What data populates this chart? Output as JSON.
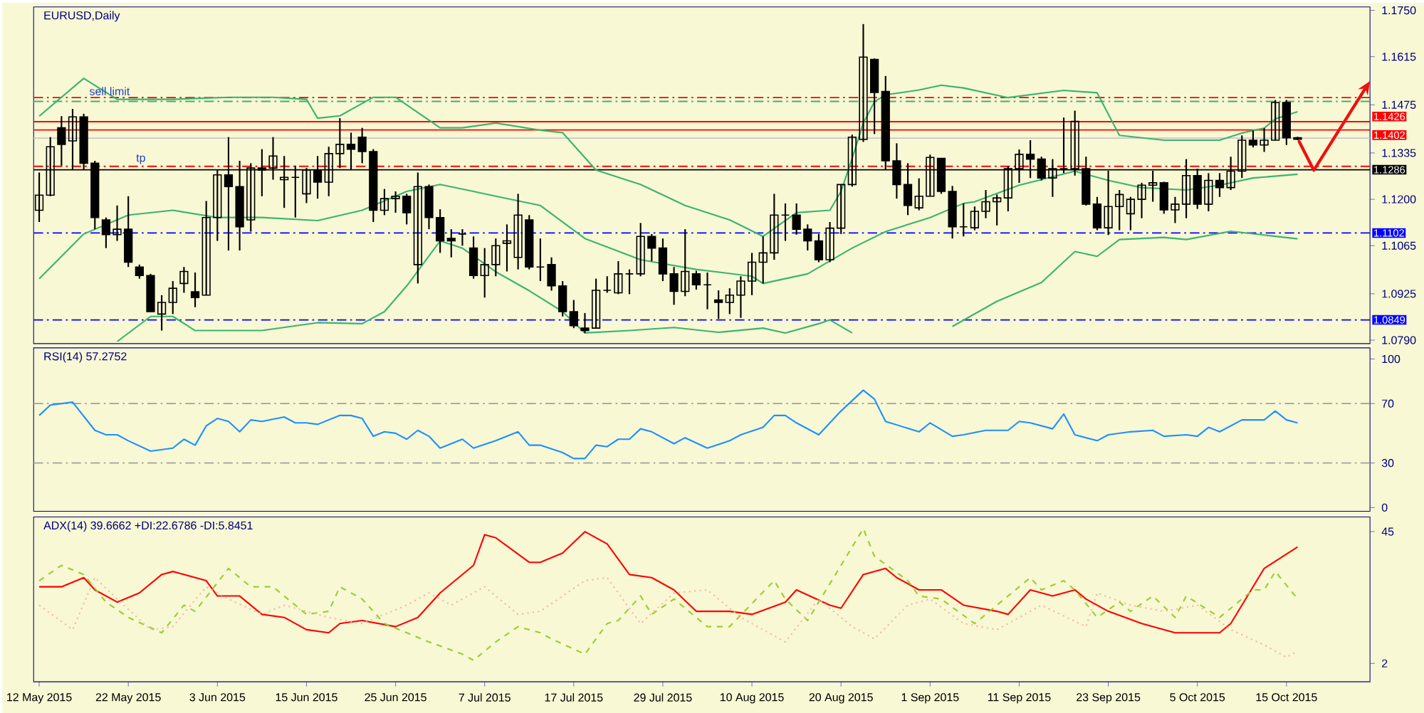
{
  "chart_data": [
    {
      "type": "candlestick",
      "title": "EURUSD,Daily",
      "categories": [
        null,
        null,
        null,
        null,
        null,
        null,
        null,
        null,
        null,
        null,
        null,
        null,
        null,
        null,
        null,
        null,
        null,
        null,
        null,
        null,
        null,
        null,
        null,
        null,
        null,
        null,
        null,
        null,
        null,
        null,
        null,
        null,
        null,
        null,
        null,
        null,
        null,
        null,
        null,
        null,
        null,
        null,
        null,
        null,
        null,
        null,
        null,
        null,
        null,
        null,
        null,
        null,
        null,
        null,
        null,
        null,
        null,
        null,
        null,
        null,
        null,
        null,
        null,
        null,
        null,
        null,
        null,
        null,
        null,
        null,
        null,
        null,
        null,
        null,
        null,
        null,
        null,
        null,
        null,
        null,
        null,
        null,
        null,
        null,
        null,
        null,
        null,
        null,
        null,
        null,
        null,
        null,
        null,
        null,
        null,
        null,
        null,
        null,
        null,
        null,
        null,
        null,
        null,
        null,
        null,
        null,
        null,
        null,
        null,
        null,
        null,
        null,
        null,
        null,
        null,
        null,
        null,
        null,
        null,
        null
      ],
      "ohlc": [
        [
          1.1168,
          1.1278,
          1.1134,
          1.1212
        ],
        [
          1.1212,
          1.1381,
          1.1209,
          1.1353
        ],
        [
          1.1408,
          1.1442,
          1.1298,
          1.136
        ],
        [
          1.137,
          1.1463,
          1.1285,
          1.144
        ],
        [
          1.144,
          1.1449,
          1.1285,
          1.1305
        ],
        [
          1.1305,
          1.1312,
          1.1113,
          1.1147
        ],
        [
          1.114,
          1.1147,
          1.1058,
          1.1097
        ],
        [
          1.1097,
          1.1182,
          1.1079,
          1.1113
        ],
        [
          1.1113,
          1.1209,
          1.1003,
          1.1017
        ],
        [
          1.1003,
          1.101,
          1.0969,
          1.0978
        ],
        [
          1.0978,
          1.0983,
          1.0873,
          1.0873
        ],
        [
          1.0866,
          1.0921,
          1.0818,
          1.09
        ],
        [
          1.09,
          1.0962,
          1.0866,
          1.0941
        ],
        [
          1.0955,
          1.1003,
          1.0928,
          1.099
        ],
        [
          1.0931,
          1.0987,
          1.0886,
          1.0914
        ],
        [
          1.0921,
          1.1195,
          1.0921,
          1.1147
        ],
        [
          1.1147,
          1.1285,
          1.1079,
          1.1271
        ],
        [
          1.1271,
          1.1381,
          1.1051,
          1.1237
        ],
        [
          1.1237,
          1.1312,
          1.1051,
          1.112
        ],
        [
          1.114,
          1.1305,
          1.1106,
          1.1291
        ],
        [
          1.1291,
          1.1346,
          1.1209,
          1.1285
        ],
        [
          1.1291,
          1.1381,
          1.1257,
          1.1326
        ],
        [
          1.1257,
          1.1326,
          1.1175,
          1.1264
        ],
        [
          1.1264,
          1.1298,
          1.1147,
          1.1264
        ],
        [
          1.1216,
          1.1291,
          1.1189,
          1.1285
        ],
        [
          1.1285,
          1.1326,
          1.1202,
          1.125
        ],
        [
          1.125,
          1.1353,
          1.1209,
          1.1333
        ],
        [
          1.1333,
          1.1436,
          1.1291,
          1.136
        ],
        [
          1.136,
          1.1394,
          1.1285,
          1.1346
        ],
        [
          1.1381,
          1.1408,
          1.1305,
          1.1339
        ],
        [
          1.1339,
          1.1346,
          1.1134,
          1.1168
        ],
        [
          1.1168,
          1.123,
          1.1154,
          1.1202
        ],
        [
          1.1202,
          1.1223,
          1.1161,
          1.1209
        ],
        [
          1.1209,
          1.1216,
          1.1127,
          1.1161
        ],
        [
          1.101,
          1.1278,
          1.0955,
          1.1237
        ],
        [
          1.1237,
          1.1243,
          1.1113,
          1.1147
        ],
        [
          1.1147,
          1.1171,
          1.1044,
          1.1079
        ],
        [
          1.1086,
          1.1113,
          1.1031,
          1.1079
        ],
        [
          1.1099,
          1.1113,
          1.1065,
          1.1099
        ],
        [
          1.1058,
          1.1092,
          1.0969,
          1.0978
        ],
        [
          1.0978,
          1.1058,
          1.0914,
          1.101
        ],
        [
          1.101,
          1.1086,
          1.0976,
          1.1065
        ],
        [
          1.1072,
          1.1127,
          1.099,
          1.1079
        ],
        [
          1.1031,
          1.1216,
          1.0996,
          1.1154
        ],
        [
          1.114,
          1.1154,
          1.0996,
          1.1003
        ],
        [
          1.1003,
          1.1086,
          1.0962,
          1.1003
        ],
        [
          1.101,
          1.1031,
          1.0934,
          1.0948
        ],
        [
          1.0948,
          1.0962,
          1.0859,
          1.0873
        ],
        [
          1.0873,
          1.0907,
          1.0825,
          1.0832
        ],
        [
          1.0825,
          1.0869,
          1.0811,
          1.0818
        ],
        [
          1.0825,
          1.0969,
          1.0825,
          1.0935
        ],
        [
          1.0935,
          1.0976,
          1.0928,
          1.0935
        ],
        [
          1.0928,
          1.102,
          1.0924,
          1.0983
        ],
        [
          1.0983,
          1.0996,
          1.0924,
          1.0983
        ],
        [
          1.0983,
          1.1131,
          1.0976,
          1.1092
        ],
        [
          1.1092,
          1.1099,
          1.102,
          1.1058
        ],
        [
          1.1058,
          1.1086,
          1.0962,
          1.0983
        ],
        [
          1.0983,
          1.1003,
          1.0893,
          1.0932
        ],
        [
          1.0932,
          1.1113,
          1.0918,
          1.099
        ],
        [
          1.0983,
          1.0992,
          1.0937,
          1.0951
        ],
        [
          1.0951,
          1.0987,
          1.088,
          1.0951
        ],
        [
          1.0907,
          1.0935,
          1.0852,
          1.09
        ],
        [
          1.09,
          1.0941,
          1.0866,
          1.0921
        ],
        [
          1.0921,
          1.0976,
          1.0855,
          1.0962
        ],
        [
          1.0962,
          1.1044,
          1.0921,
          1.1017
        ],
        [
          1.1017,
          1.1092,
          1.0955,
          1.1044
        ],
        [
          1.1044,
          1.1216,
          1.1024,
          1.1154
        ],
        [
          1.1154,
          1.1188,
          1.1079,
          1.1154
        ],
        [
          1.1154,
          1.1188,
          1.1097,
          1.1113
        ],
        [
          1.1113,
          1.1127,
          1.1051,
          1.1079
        ],
        [
          1.1079,
          1.1099,
          1.1017,
          1.1024
        ],
        [
          1.1024,
          1.1134,
          1.1017,
          1.1116
        ],
        [
          1.1116,
          1.1243,
          1.1099,
          1.1243
        ],
        [
          1.1243,
          1.1388,
          1.1237,
          1.1381
        ],
        [
          1.1374,
          1.171,
          1.1367,
          1.1614
        ],
        [
          1.1607,
          1.161,
          1.139,
          1.1511
        ],
        [
          1.1514,
          1.1559,
          1.1285,
          1.1312
        ],
        [
          1.1312,
          1.1363,
          1.1202,
          1.1243
        ],
        [
          1.1243,
          1.1305,
          1.1154,
          1.1182
        ],
        [
          1.1175,
          1.1261,
          1.1168,
          1.1209
        ],
        [
          1.1209,
          1.133,
          1.1209,
          1.1322
        ],
        [
          1.1319,
          1.1319,
          1.1216,
          1.1223
        ],
        [
          1.1223,
          1.1239,
          1.1086,
          1.112
        ],
        [
          1.112,
          1.1188,
          1.1092,
          1.112
        ],
        [
          1.1117,
          1.1179,
          1.111,
          1.1165
        ],
        [
          1.1165,
          1.1227,
          1.1145,
          1.1193
        ],
        [
          1.1193,
          1.1214,
          1.1124,
          1.1204
        ],
        [
          1.1204,
          1.1296,
          1.1165,
          1.1289
        ],
        [
          1.1289,
          1.1345,
          1.1248,
          1.1331
        ],
        [
          1.1331,
          1.1372,
          1.1262,
          1.1317
        ],
        [
          1.1317,
          1.1324,
          1.1255,
          1.1262
        ],
        [
          1.1262,
          1.1317,
          1.1207,
          1.1289
        ],
        [
          1.1289,
          1.1438,
          1.1276,
          1.1289
        ],
        [
          1.1289,
          1.1458,
          1.1269,
          1.1427
        ],
        [
          1.1289,
          1.1324,
          1.1182,
          1.1186
        ],
        [
          1.1186,
          1.1207,
          1.111,
          1.1117
        ],
        [
          1.1117,
          1.1283,
          1.1096,
          1.1179
        ],
        [
          1.1179,
          1.1227,
          1.111,
          1.1214
        ],
        [
          1.1158,
          1.1207,
          1.111,
          1.12
        ],
        [
          1.12,
          1.1248,
          1.1145,
          1.1241
        ],
        [
          1.1241,
          1.1283,
          1.1193,
          1.1248
        ],
        [
          1.1248,
          1.1251,
          1.1158,
          1.1169
        ],
        [
          1.1169,
          1.1207,
          1.1131,
          1.1186
        ],
        [
          1.1186,
          1.1317,
          1.1145,
          1.1269
        ],
        [
          1.1269,
          1.1289,
          1.1172,
          1.1186
        ],
        [
          1.1186,
          1.1276,
          1.1165,
          1.1255
        ],
        [
          1.1255,
          1.1276,
          1.1207,
          1.1234
        ],
        [
          1.1234,
          1.1324,
          1.1227,
          1.1282
        ],
        [
          1.1282,
          1.1386,
          1.1262,
          1.1372
        ],
        [
          1.1372,
          1.14,
          1.1351,
          1.1358
        ],
        [
          1.1358,
          1.1407,
          1.1338,
          1.1372
        ],
        [
          1.1372,
          1.1489,
          1.1372,
          1.1482
        ],
        [
          1.1482,
          1.1489,
          1.1358,
          1.1379
        ],
        [
          1.1379,
          1.1382,
          1.1372,
          1.1375
        ],
        null,
        null,
        null,
        null,
        null,
        null
      ],
      "series": [
        {
          "type": "line",
          "color": "#3cb371",
          "values": [
            1.1442,
            null,
            null,
            null,
            1.1552,
            null,
            null,
            1.1491,
            null,
            null,
            null,
            null,
            1.1491,
            null,
            null,
            null,
            null,
            1.1497,
            null,
            null,
            null,
            1.1497,
            null,
            null,
            1.1491,
            1.1436,
            null,
            1.1443,
            null,
            null,
            1.1497,
            null,
            1.1497,
            null,
            null,
            null,
            1.1408,
            null,
            1.1408,
            null,
            null,
            1.1422,
            null,
            null,
            null,
            1.1401,
            null,
            1.1394,
            null,
            null,
            1.1285,
            null,
            null,
            null,
            1.1243,
            null,
            null,
            null,
            1.1182,
            null,
            null,
            null,
            1.114,
            null,
            null,
            1.1092,
            null,
            null,
            1.1161,
            null,
            null,
            1.1168,
            1.1223,
            1.1319,
            1.1422,
            1.1484,
            1.1504,
            null,
            null,
            1.1518,
            null,
            1.1532,
            null,
            1.1524,
            null,
            null,
            null,
            1.1496,
            null,
            null,
            null,
            null,
            1.1517,
            null,
            null,
            1.151,
            null,
            1.1386,
            null,
            null,
            null,
            1.1372,
            null,
            null,
            null,
            null,
            1.1372,
            null,
            1.1393,
            null,
            1.1407,
            1.1434,
            null,
            1.1455,
            null,
            null,
            null,
            null,
            null,
            null
          ]
        },
        {
          "type": "line",
          "color": "#3cb371",
          "values": [
            1.0969,
            null,
            null,
            null,
            1.1099,
            null,
            null,
            null,
            1.1154,
            null,
            null,
            null,
            1.1168,
            null,
            null,
            null,
            1.1147,
            null,
            null,
            null,
            1.1147,
            null,
            null,
            null,
            null,
            1.1138,
            null,
            null,
            null,
            1.1168,
            null,
            null,
            null,
            1.1223,
            null,
            null,
            1.1243,
            null,
            null,
            1.1223,
            null,
            1.1209,
            null,
            null,
            null,
            1.1182,
            null,
            null,
            null,
            1.1086,
            null,
            null,
            null,
            null,
            1.1024,
            null,
            null,
            null,
            null,
            1.0996,
            null,
            null,
            null,
            null,
            1.0976,
            1.0955,
            null,
            null,
            null,
            1.0983,
            null,
            null,
            null,
            1.1058,
            null,
            null,
            1.1106,
            null,
            null,
            null,
            1.1147,
            null,
            null,
            1.1188,
            1.1193,
            null,
            null,
            null,
            1.1241,
            null,
            null,
            null,
            null,
            1.1282,
            null,
            null,
            1.1255,
            null,
            null,
            1.1234,
            null,
            null,
            null,
            1.1227,
            null,
            null,
            1.1241,
            null,
            null,
            1.1262,
            null,
            null,
            null,
            1.1273,
            null,
            null,
            null,
            null,
            null,
            null
          ]
        },
        {
          "type": "line",
          "color": "#3cb371",
          "values": [
            null,
            null,
            null,
            null,
            null,
            null,
            null,
            1.0786,
            null,
            null,
            1.0859,
            null,
            1.0859,
            null,
            1.0818,
            null,
            null,
            null,
            null,
            null,
            1.0818,
            null,
            null,
            null,
            null,
            1.0841,
            null,
            null,
            null,
            1.0838,
            null,
            1.0873,
            null,
            1.0948,
            null,
            null,
            1.1079,
            null,
            1.1058,
            null,
            null,
            1.0989,
            null,
            null,
            1.0934,
            null,
            null,
            1.0873,
            null,
            1.0811,
            null,
            null,
            null,
            1.0818,
            null,
            null,
            null,
            1.0827,
            null,
            null,
            null,
            1.0813,
            null,
            null,
            null,
            1.0825,
            null,
            1.0811,
            null,
            null,
            1.0838,
            1.0849,
            null,
            1.0811,
            null,
            null,
            null,
            null,
            null,
            null,
            null,
            null,
            null,
            null,
            null,
            null,
            null,
            null,
            null,
            null,
            null,
            null,
            null,
            null,
            null,
            null,
            null,
            null,
            null,
            null,
            null,
            null,
            null,
            null,
            null,
            null,
            null,
            null,
            null,
            null,
            null,
            null,
            null,
            null,
            null,
            null,
            null,
            null,
            null,
            null
          ]
        },
        {
          "type": "line",
          "color": "#3cb371",
          "values": [
            null,
            null,
            null,
            null,
            null,
            null,
            null,
            null,
            null,
            null,
            null,
            null,
            null,
            null,
            null,
            null,
            null,
            null,
            null,
            null,
            null,
            null,
            null,
            null,
            null,
            null,
            null,
            null,
            null,
            null,
            null,
            null,
            null,
            null,
            null,
            null,
            null,
            null,
            null,
            null,
            null,
            null,
            null,
            null,
            null,
            null,
            null,
            null,
            null,
            null,
            null,
            null,
            null,
            null,
            null,
            null,
            null,
            null,
            null,
            null,
            null,
            null,
            null,
            null,
            null,
            null,
            null,
            null,
            null,
            null,
            null,
            null,
            null,
            null,
            null,
            null,
            null,
            null,
            null,
            null,
            null,
            null,
            1.083,
            null,
            null,
            null,
            1.0903,
            null,
            null,
            null,
            1.0958,
            null,
            null,
            1.1048,
            null,
            1.1034,
            null,
            1.1083,
            null,
            null,
            null,
            1.1089,
            null,
            1.1083,
            null,
            null,
            null,
            1.1107,
            null,
            null,
            1.1096,
            null,
            null,
            1.1085,
            null,
            null,
            null,
            null,
            null,
            null
          ]
        }
      ],
      "ylim": [
        1.078,
        1.176
      ],
      "yticks": [
        {
          "value": 1.079,
          "label": "1.0790"
        },
        1.0925,
        1.1065,
        {
          "value": 1.12,
          "label": "1.1200"
        },
        1.1335,
        1.1475,
        1.1615,
        {
          "value": 1.175,
          "label": "1.1750"
        }
      ],
      "tick_labels": "y",
      "ref_lines": [
        {
          "axis": "y",
          "value": 1.1496,
          "color": "#ff0000",
          "line_style": "dashed"
        },
        {
          "axis": "y",
          "value": 1.1485,
          "color": "#3cb371",
          "line_style": "dashed"
        },
        {
          "axis": "y",
          "value": 1.1426,
          "label": "1.1426",
          "color": "#ff0000"
        },
        {
          "axis": "y",
          "value": 1.1402,
          "label": "1.1402",
          "color": "#ff0000"
        },
        {
          "axis": "y",
          "value": 1.1378,
          "color": "#c8c8c8"
        },
        {
          "axis": "y",
          "value": 1.1296,
          "color": "#ff0000",
          "line_style": "dashed"
        },
        {
          "axis": "y",
          "value": 1.1286,
          "label": "1.1286",
          "color": "#000000"
        },
        {
          "axis": "y",
          "value": 1.1102,
          "label": "1.1102",
          "color": "#0000ff",
          "line_style": "dashed"
        },
        {
          "axis": "y",
          "value": 1.0849,
          "label": "1.0849",
          "color": "#0000ff",
          "line_style": "dashed"
        }
      ],
      "annotations": [
        {
          "text": "sell limit",
          "y": 1.1496
        },
        {
          "text": "tp",
          "y": 1.1296
        }
      ]
    },
    {
      "type": "line",
      "title": "RSI(14) 57.2752",
      "categories": [
        null,
        null,
        null,
        null,
        null,
        null,
        null,
        null,
        null,
        null,
        null,
        null,
        null,
        null,
        null,
        null,
        null,
        null,
        null,
        null,
        null,
        null,
        null,
        null,
        null,
        null,
        null,
        null,
        null,
        null,
        null,
        null,
        null,
        null,
        null,
        null,
        null,
        null,
        null,
        null,
        null,
        null,
        null,
        null,
        null,
        null,
        null,
        null,
        null,
        null,
        null,
        null,
        null,
        null,
        null,
        null,
        null,
        null,
        null,
        null,
        null,
        null,
        null,
        null,
        null,
        null,
        null,
        null,
        null,
        null,
        null,
        null,
        null,
        null,
        null,
        null,
        null,
        null,
        null,
        null,
        null,
        null,
        null,
        null,
        null,
        null,
        null,
        null,
        null,
        null,
        null,
        null,
        null,
        null,
        null,
        null,
        null,
        null,
        null,
        null,
        null,
        null,
        null,
        null,
        null,
        null,
        null,
        null,
        null,
        null,
        null,
        null,
        null,
        null,
        null,
        null,
        null,
        null,
        null,
        null
      ],
      "series": [
        {
          "color": "#1e90ff",
          "values": [
            62,
            69,
            null,
            71,
            null,
            52,
            49,
            49,
            45,
            null,
            38,
            null,
            40,
            46,
            42,
            55,
            60,
            58,
            51,
            59,
            58,
            null,
            61,
            57,
            57,
            56,
            null,
            62,
            62,
            60,
            48,
            51,
            50,
            46,
            52,
            48,
            40,
            null,
            46,
            40,
            null,
            45,
            null,
            51,
            42,
            42,
            null,
            37,
            33,
            33,
            42,
            41,
            46,
            46,
            53,
            51,
            null,
            43,
            47,
            null,
            40,
            null,
            45,
            49,
            null,
            54,
            62,
            62,
            57,
            null,
            49,
            null,
            65,
            null,
            79,
            73,
            58,
            null,
            null,
            51,
            57,
            null,
            48,
            49,
            null,
            52,
            null,
            52,
            58,
            57,
            null,
            53,
            63,
            49,
            null,
            45,
            49,
            null,
            51,
            null,
            52,
            48,
            null,
            49,
            48,
            54,
            51,
            null,
            59,
            null,
            59,
            65,
            59,
            57,
            null,
            null,
            null,
            null,
            null,
            null
          ]
        }
      ],
      "ylim": [
        -2.5,
        107.5
      ],
      "yticks": [
        0,
        30,
        70,
        100
      ],
      "tick_labels": "y",
      "ref_lines": [
        {
          "axis": "y",
          "value": 70,
          "color": "#a0a0a0",
          "line_style": "dashed"
        },
        {
          "axis": "y",
          "value": 30,
          "color": "#a0a0a0",
          "line_style": "dashed"
        }
      ]
    },
    {
      "type": "line",
      "title": "ADX(14) 39.6662 +DI:22.6786 -DI:5.8451",
      "categories": [
        "12 May 2015",
        null,
        null,
        null,
        null,
        null,
        null,
        null,
        "22 May 2015",
        null,
        null,
        null,
        null,
        null,
        null,
        null,
        "3 Jun 2015",
        null,
        null,
        null,
        null,
        null,
        null,
        null,
        "15 Jun 2015",
        null,
        null,
        null,
        null,
        null,
        null,
        null,
        "25 Jun 2015",
        null,
        null,
        null,
        null,
        null,
        null,
        null,
        "7 Jul 2015",
        null,
        null,
        null,
        null,
        null,
        null,
        null,
        "17 Jul 2015",
        null,
        null,
        null,
        null,
        null,
        null,
        null,
        "29 Jul 2015",
        null,
        null,
        null,
        null,
        null,
        null,
        null,
        "10 Aug 2015",
        null,
        null,
        null,
        null,
        null,
        null,
        null,
        "20 Aug 2015",
        null,
        null,
        null,
        null,
        null,
        null,
        null,
        "1 Sep 2015",
        null,
        null,
        null,
        null,
        null,
        null,
        null,
        "11 Sep 2015",
        null,
        null,
        null,
        null,
        null,
        null,
        null,
        "23 Sep 2015",
        null,
        null,
        null,
        null,
        null,
        null,
        null,
        "5 Oct 2015",
        null,
        null,
        null,
        null,
        null,
        null,
        null,
        "15 Oct 2015",
        null,
        null,
        null,
        null,
        null,
        null,
        null
      ],
      "series": [
        {
          "color": "#ff0000",
          "line_style": "solid",
          "values": [
            27,
            null,
            27,
            null,
            30,
            26,
            null,
            22,
            null,
            25,
            null,
            31,
            32,
            null,
            null,
            29,
            24,
            null,
            24,
            null,
            18,
            null,
            17,
            null,
            13,
            null,
            12,
            15,
            null,
            16,
            null,
            null,
            14,
            null,
            17,
            null,
            25,
            null,
            null,
            34,
            44,
            43,
            null,
            null,
            35,
            35,
            null,
            38,
            null,
            45,
            null,
            41,
            null,
            31,
            null,
            30,
            null,
            26,
            null,
            19,
            null,
            null,
            19,
            null,
            18,
            null,
            null,
            22,
            26,
            null,
            null,
            21,
            20,
            null,
            31,
            null,
            33,
            30,
            null,
            26,
            null,
            26,
            null,
            21,
            null,
            null,
            19,
            18,
            null,
            26,
            null,
            24,
            null,
            26,
            23,
            null,
            19,
            null,
            null,
            15,
            null,
            null,
            12,
            null,
            null,
            null,
            12,
            15,
            null,
            null,
            33,
            null,
            null,
            40,
            null,
            null,
            null,
            null,
            null,
            null
          ]
        },
        {
          "color": "#9acd32",
          "line_style": "dashed",
          "values": [
            29,
            null,
            34,
            null,
            31,
            null,
            22,
            null,
            17,
            null,
            null,
            12,
            null,
            21,
            19,
            null,
            null,
            33,
            null,
            27,
            null,
            27,
            null,
            null,
            18,
            null,
            19,
            27,
            null,
            23,
            null,
            15,
            null,
            null,
            null,
            9,
            null,
            null,
            5,
            3,
            null,
            9,
            null,
            14,
            null,
            12,
            10,
            null,
            null,
            5,
            null,
            15,
            16,
            null,
            24,
            18,
            null,
            23,
            null,
            null,
            14,
            null,
            14,
            null,
            null,
            null,
            29,
            23,
            null,
            16,
            null,
            28,
            null,
            null,
            46,
            37,
            null,
            null,
            29,
            24,
            null,
            23,
            null,
            null,
            15,
            null,
            21,
            null,
            null,
            30,
            26,
            null,
            29,
            26,
            null,
            17,
            null,
            22,
            19,
            null,
            24,
            null,
            17,
            24,
            null,
            null,
            17,
            null,
            null,
            26,
            26,
            32,
            null,
            23,
            null,
            null,
            null,
            null,
            null,
            null
          ]
        },
        {
          "color": "#f4b8a4",
          "line_style": "dotted",
          "values": [
            21,
            null,
            null,
            13,
            null,
            30,
            null,
            23,
            null,
            null,
            13,
            null,
            14,
            null,
            null,
            27,
            null,
            23,
            null,
            null,
            18,
            null,
            21,
            null,
            null,
            null,
            17,
            null,
            null,
            15,
            null,
            null,
            null,
            21,
            null,
            25,
            null,
            21,
            null,
            null,
            27,
            null,
            null,
            18,
            null,
            19,
            null,
            null,
            null,
            29,
            null,
            30,
            null,
            null,
            15,
            null,
            null,
            25,
            null,
            null,
            26,
            null,
            null,
            17,
            null,
            null,
            null,
            9,
            null,
            null,
            23,
            null,
            null,
            14,
            null,
            10,
            null,
            null,
            21,
            null,
            23,
            null,
            null,
            15,
            null,
            null,
            13,
            null,
            null,
            null,
            21,
            null,
            null,
            null,
            14,
            25,
            null,
            null,
            21,
            null,
            null,
            19,
            null,
            null,
            21,
            null,
            null,
            13,
            null,
            null,
            8,
            null,
            4,
            6,
            null,
            null,
            null,
            null,
            null,
            null
          ]
        }
      ],
      "ylim": [
        -4,
        49.8
      ],
      "yticks": [
        2,
        45
      ]
    }
  ]
}
